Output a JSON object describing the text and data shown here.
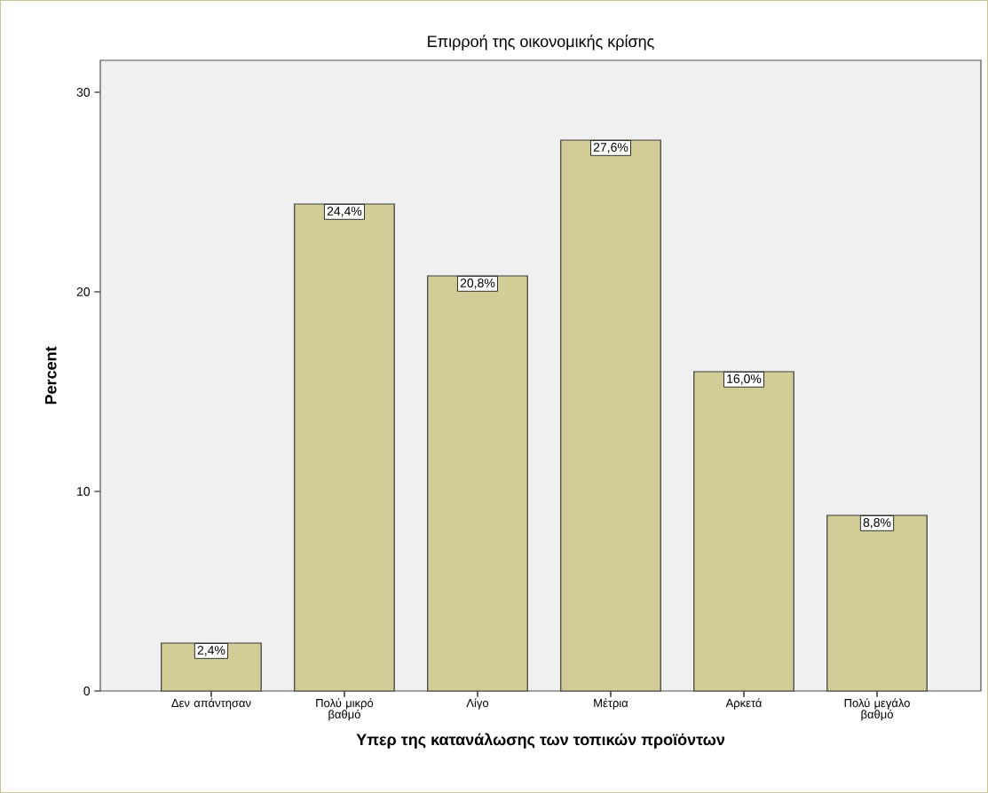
{
  "chart_data": {
    "type": "bar",
    "title": "Επιρροή της οικονομικής κρίσης",
    "xlabel": "Υπερ της κατανάλωσης των τοπικών προϊόντων",
    "ylabel": "Percent",
    "categories": [
      "Δεν απάντησαν",
      "Πολύ μικρό βαθμό",
      "Λίγο",
      "Μέτρια",
      "Αρκετά",
      "Πολύ μεγάλο βαθμό"
    ],
    "values": [
      2.4,
      24.4,
      20.8,
      27.6,
      16.0,
      8.8
    ],
    "value_labels": [
      "2,4%",
      "24,4%",
      "20,8%",
      "27,6%",
      "16,0%",
      "8,8%"
    ],
    "color": "#d2cc96",
    "ylim": [
      0,
      31.6
    ],
    "yticks": [
      0,
      10,
      20,
      30
    ],
    "grid": false
  }
}
